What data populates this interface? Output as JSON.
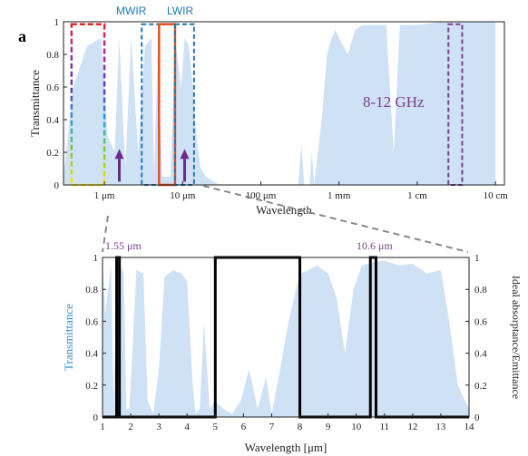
{
  "figure": {
    "panel_label": "a",
    "colors": {
      "transmittance_fill": "#cfe1f5",
      "axis": "#222222",
      "ideal_line": "#000000",
      "mwir": "#1f78b4",
      "lwir": "#1f78b4",
      "ghz": "#7b3f8c",
      "arrow": "#6a2b8c",
      "visible_gradient": [
        "#ffe600",
        "#7ed321",
        "#2aa0e0",
        "#5a3fb0",
        "#9b2fae",
        "#e02b2b"
      ],
      "highlight_box": "#e0531f",
      "dashed_connector": "#888888",
      "left_axis_label_color": "#3a8fd0"
    }
  },
  "chart_data": [
    {
      "type": "area",
      "xscale": "log",
      "xlabel": "Wavelength",
      "ylabel": "Transmittance",
      "ylim": [
        0,
        1
      ],
      "yticks": [
        "0",
        "0.2",
        "0.4",
        "0.6",
        "0.8",
        "1"
      ],
      "xticks": [
        "1 μm",
        "10 μm",
        "100 μm",
        "1 mm",
        "1 cm",
        "10 cm"
      ],
      "xtick_values_m": [
        1e-06,
        1e-05,
        0.0001,
        0.001,
        0.01,
        0.1
      ],
      "band_labels": {
        "mwir": "MWIR",
        "lwir": "LWIR",
        "ghz": "8-12 GHz"
      },
      "series": [
        {
          "x_m": [
            3e-07,
            4e-07,
            6e-07,
            9e-07,
            1.1e-06,
            1.35e-06,
            1.55e-06,
            1.85e-06,
            2.2e-06,
            2.7e-06,
            3.3e-06,
            4e-06,
            4.3e-06,
            4.8e-06,
            5.5e-06,
            7e-06,
            8e-06,
            9.6e-06,
            1.06e-05,
            1.2e-05,
            1.35e-05,
            1.5e-05,
            1.7e-05,
            2e-05,
            2.5e-05,
            3e-05,
            4e-05,
            0.0001,
            0.0003,
            0.00033,
            0.00036,
            0.00042,
            0.00045,
            0.00048,
            0.0006,
            0.0007,
            0.0008,
            0.0009,
            0.001,
            0.0013,
            0.0016,
            0.002,
            0.003,
            0.004,
            0.005,
            0.006,
            0.01,
            0.02,
            0.05,
            0.1
          ],
          "y": [
            0.05,
            0.6,
            0.85,
            0.9,
            0.3,
            0.2,
            0.9,
            0.1,
            0.9,
            0.2,
            0.85,
            0.9,
            0.05,
            0.8,
            0.05,
            0.05,
            0.9,
            0.6,
            0.9,
            0.85,
            0.6,
            0.3,
            0.1,
            0.05,
            0.02,
            0.0,
            0.0,
            0.0,
            0.0,
            0.25,
            0.0,
            0.0,
            0.2,
            0.0,
            0.4,
            0.8,
            0.9,
            0.95,
            0.9,
            0.8,
            0.95,
            0.98,
            0.98,
            0.98,
            0.2,
            0.98,
            0.98,
            1.0,
            1.0,
            1.0
          ]
        }
      ],
      "regions_m": {
        "visible_box": [
          3.8e-07,
          1e-06
        ],
        "mwir_box": [
          3e-06,
          5e-06
        ],
        "highlight_box": [
          5e-06,
          8e-06
        ],
        "lwir_box": [
          8e-06,
          1.4e-05
        ],
        "ghz_box": [
          0.025,
          0.0375
        ]
      },
      "arrows_m": [
        1.55e-06,
        1.06e-05
      ]
    },
    {
      "type": "area",
      "xlabel": "Wavelength [μm]",
      "ylabel": "Transmittance",
      "y2label": "Ideal absorptance/Emittance",
      "xlim": [
        1,
        14
      ],
      "ylim": [
        0,
        1
      ],
      "xticks": [
        "1",
        "2",
        "3",
        "4",
        "5",
        "6",
        "7",
        "8",
        "9",
        "10",
        "11",
        "12",
        "13",
        "14"
      ],
      "yticks": [
        "0",
        "0.2",
        "0.4",
        "0.6",
        "0.8",
        "1"
      ],
      "annotations": [
        "1.55 μm",
        "10.6 μm"
      ],
      "series": [
        {
          "name": "Transmittance",
          "x": [
            1.0,
            1.1,
            1.3,
            1.4,
            1.5,
            1.6,
            1.75,
            1.85,
            1.95,
            2.0,
            2.2,
            2.45,
            2.6,
            2.8,
            3.0,
            3.2,
            3.5,
            3.8,
            4.0,
            4.2,
            4.3,
            4.45,
            4.6,
            4.8,
            5.0,
            5.3,
            5.6,
            5.9,
            6.2,
            6.5,
            6.8,
            7.0,
            7.3,
            7.6,
            8.0,
            8.3,
            8.6,
            9.0,
            9.3,
            9.6,
            9.9,
            10.2,
            10.6,
            11.0,
            11.5,
            12.0,
            12.5,
            13.0,
            13.3,
            13.6,
            14.0
          ],
          "y": [
            0.98,
            0.65,
            0.95,
            0.05,
            0.95,
            0.96,
            0.9,
            0.05,
            0.05,
            0.2,
            0.92,
            0.9,
            0.1,
            0.02,
            0.3,
            0.88,
            0.92,
            0.9,
            0.85,
            0.2,
            0.02,
            0.05,
            0.6,
            0.05,
            0.1,
            0.05,
            0.02,
            0.1,
            0.3,
            0.05,
            0.25,
            0.02,
            0.3,
            0.6,
            0.9,
            0.92,
            0.95,
            0.9,
            0.75,
            0.4,
            0.8,
            0.95,
            0.97,
            0.98,
            0.95,
            0.96,
            0.9,
            0.92,
            0.6,
            0.2,
            0.05
          ]
        },
        {
          "name": "Ideal absorptance/Emittance",
          "x": [
            1.0,
            1.5,
            1.5,
            1.6,
            1.6,
            5.0,
            5.0,
            8.0,
            8.0,
            10.5,
            10.5,
            10.7,
            10.7,
            14.0
          ],
          "y": [
            0,
            0,
            1,
            1,
            0,
            0,
            1,
            1,
            0,
            0,
            1,
            1,
            0,
            0
          ]
        }
      ]
    }
  ]
}
